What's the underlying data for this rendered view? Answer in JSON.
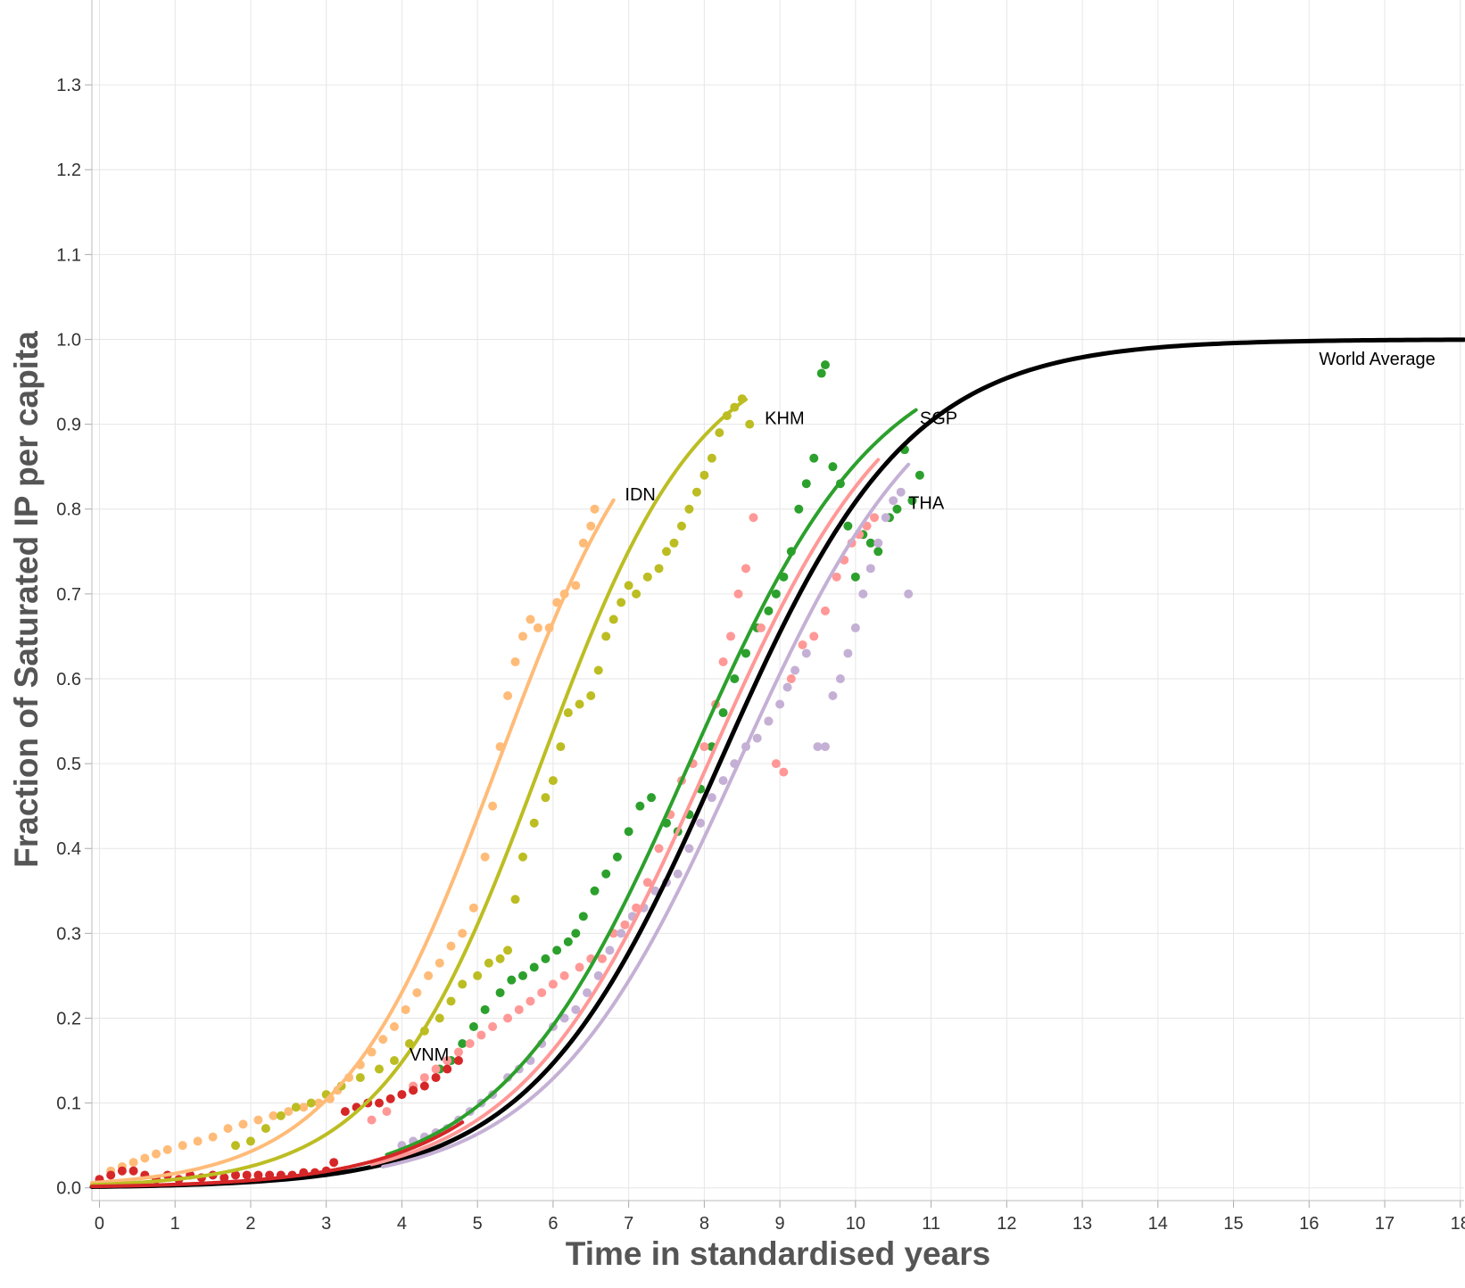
{
  "chart_data": {
    "type": "scatter",
    "title": "",
    "xlabel": "Time in standardised years",
    "ylabel": "Fraction of Saturated IP per capita",
    "xlim": [
      -0.1,
      18.05
    ],
    "ylim": [
      -0.015,
      1.4
    ],
    "x_ticks": [
      "0",
      "1",
      "2",
      "3",
      "4",
      "5",
      "6",
      "7",
      "8",
      "9",
      "10",
      "11",
      "12",
      "13",
      "14",
      "15",
      "16",
      "17",
      "18"
    ],
    "y_ticks": [
      "0.0",
      "0.1",
      "0.2",
      "0.3",
      "0.4",
      "0.5",
      "0.6",
      "0.7",
      "0.8",
      "0.9",
      "1.0",
      "1.1",
      "1.2",
      "1.3"
    ],
    "grid": true,
    "legend": "none",
    "fit_curves": [
      {
        "name": "World Average",
        "color": "#000000",
        "x0": 8.2,
        "k": 0.8,
        "x_range": [
          -0.1,
          18.05
        ],
        "label_at": [
          16.9,
          0.97
        ]
      },
      {
        "name": "IDN",
        "color": "#ffbb78",
        "x0": 5.27,
        "k": 0.95,
        "x_range": [
          -0.1,
          6.8
        ],
        "label_at": [
          6.95,
          0.81
        ]
      },
      {
        "name": "KHM",
        "color": "#bcbd22",
        "x0": 5.84,
        "k": 0.95,
        "x_range": [
          -0.1,
          8.55
        ],
        "label_at": [
          8.8,
          0.9
        ]
      },
      {
        "name": "SGP",
        "color": "#2ca02c",
        "x0": 7.8,
        "k": 0.8,
        "x_range": [
          3.8,
          10.8
        ],
        "label_at": [
          10.85,
          0.9
        ]
      },
      {
        "name": "THA",
        "color": "#ff9896",
        "x0": 8.05,
        "k": 0.8,
        "x_range": [
          3.6,
          10.3
        ],
        "label_at": [
          10.7,
          0.8
        ]
      },
      {
        "name": "",
        "color": "#c5b0d5",
        "x0": 8.45,
        "k": 0.78,
        "x_range": [
          3.75,
          10.7
        ]
      },
      {
        "name": "VNM",
        "color": "#d62728",
        "x0": 7.9,
        "k": 0.8,
        "x_range": [
          -0.1,
          4.8
        ],
        "label_at": [
          4.1,
          0.15
        ]
      }
    ],
    "series": [
      {
        "name": "IDN",
        "color": "#ffbb78",
        "points": [
          [
            0.0,
            0.01
          ],
          [
            0.15,
            0.02
          ],
          [
            0.3,
            0.025
          ],
          [
            0.45,
            0.03
          ],
          [
            0.6,
            0.035
          ],
          [
            0.75,
            0.04
          ],
          [
            0.9,
            0.045
          ],
          [
            1.1,
            0.05
          ],
          [
            1.3,
            0.055
          ],
          [
            1.5,
            0.06
          ],
          [
            1.7,
            0.07
          ],
          [
            1.9,
            0.075
          ],
          [
            2.1,
            0.08
          ],
          [
            2.3,
            0.085
          ],
          [
            2.5,
            0.09
          ],
          [
            2.7,
            0.095
          ],
          [
            2.9,
            0.1
          ],
          [
            3.05,
            0.105
          ],
          [
            3.15,
            0.115
          ],
          [
            3.3,
            0.13
          ],
          [
            3.45,
            0.145
          ],
          [
            3.6,
            0.16
          ],
          [
            3.75,
            0.175
          ],
          [
            3.9,
            0.19
          ],
          [
            4.05,
            0.21
          ],
          [
            4.2,
            0.23
          ],
          [
            4.35,
            0.25
          ],
          [
            4.5,
            0.265
          ],
          [
            4.65,
            0.285
          ],
          [
            4.8,
            0.3
          ],
          [
            4.95,
            0.33
          ],
          [
            5.1,
            0.39
          ],
          [
            5.2,
            0.45
          ],
          [
            5.3,
            0.52
          ],
          [
            5.4,
            0.58
          ],
          [
            5.5,
            0.62
          ],
          [
            5.6,
            0.65
          ],
          [
            5.7,
            0.67
          ],
          [
            5.8,
            0.66
          ],
          [
            5.95,
            0.66
          ],
          [
            6.05,
            0.69
          ],
          [
            6.15,
            0.7
          ],
          [
            6.3,
            0.71
          ],
          [
            6.4,
            0.76
          ],
          [
            6.5,
            0.78
          ],
          [
            6.55,
            0.8
          ]
        ]
      },
      {
        "name": "KHM",
        "color": "#bcbd22",
        "points": [
          [
            1.8,
            0.05
          ],
          [
            2.0,
            0.055
          ],
          [
            2.2,
            0.07
          ],
          [
            2.4,
            0.085
          ],
          [
            2.6,
            0.095
          ],
          [
            2.8,
            0.1
          ],
          [
            3.0,
            0.11
          ],
          [
            3.2,
            0.12
          ],
          [
            3.45,
            0.13
          ],
          [
            3.7,
            0.14
          ],
          [
            3.9,
            0.15
          ],
          [
            4.1,
            0.17
          ],
          [
            4.3,
            0.185
          ],
          [
            4.5,
            0.2
          ],
          [
            4.65,
            0.22
          ],
          [
            4.8,
            0.24
          ],
          [
            5.0,
            0.25
          ],
          [
            5.15,
            0.265
          ],
          [
            5.3,
            0.27
          ],
          [
            5.4,
            0.28
          ],
          [
            5.5,
            0.34
          ],
          [
            5.6,
            0.39
          ],
          [
            5.75,
            0.43
          ],
          [
            5.9,
            0.46
          ],
          [
            6.0,
            0.48
          ],
          [
            6.1,
            0.52
          ],
          [
            6.2,
            0.56
          ],
          [
            6.35,
            0.57
          ],
          [
            6.5,
            0.58
          ],
          [
            6.6,
            0.61
          ],
          [
            6.7,
            0.65
          ],
          [
            6.8,
            0.67
          ],
          [
            6.9,
            0.69
          ],
          [
            7.0,
            0.71
          ],
          [
            7.1,
            0.7
          ],
          [
            7.25,
            0.72
          ],
          [
            7.4,
            0.73
          ],
          [
            7.5,
            0.75
          ],
          [
            7.6,
            0.76
          ],
          [
            7.7,
            0.78
          ],
          [
            7.8,
            0.8
          ],
          [
            7.9,
            0.82
          ],
          [
            8.0,
            0.84
          ],
          [
            8.1,
            0.86
          ],
          [
            8.2,
            0.89
          ],
          [
            8.3,
            0.91
          ],
          [
            8.4,
            0.92
          ],
          [
            8.5,
            0.93
          ],
          [
            8.6,
            0.9
          ]
        ]
      },
      {
        "name": "SGP",
        "color": "#2ca02c",
        "points": [
          [
            4.5,
            0.14
          ],
          [
            4.65,
            0.15
          ],
          [
            4.8,
            0.17
          ],
          [
            4.95,
            0.19
          ],
          [
            5.1,
            0.21
          ],
          [
            5.3,
            0.23
          ],
          [
            5.45,
            0.245
          ],
          [
            5.6,
            0.25
          ],
          [
            5.75,
            0.26
          ],
          [
            5.9,
            0.27
          ],
          [
            6.05,
            0.28
          ],
          [
            6.2,
            0.29
          ],
          [
            6.3,
            0.3
          ],
          [
            6.4,
            0.32
          ],
          [
            6.55,
            0.35
          ],
          [
            6.7,
            0.37
          ],
          [
            6.85,
            0.39
          ],
          [
            7.0,
            0.42
          ],
          [
            7.15,
            0.45
          ],
          [
            7.3,
            0.46
          ],
          [
            7.5,
            0.43
          ],
          [
            7.65,
            0.42
          ],
          [
            7.8,
            0.44
          ],
          [
            7.95,
            0.47
          ],
          [
            8.1,
            0.52
          ],
          [
            8.25,
            0.56
          ],
          [
            8.4,
            0.6
          ],
          [
            8.55,
            0.63
          ],
          [
            8.7,
            0.66
          ],
          [
            8.85,
            0.68
          ],
          [
            8.95,
            0.7
          ],
          [
            9.05,
            0.72
          ],
          [
            9.15,
            0.75
          ],
          [
            9.25,
            0.8
          ],
          [
            9.35,
            0.83
          ],
          [
            9.45,
            0.86
          ],
          [
            9.55,
            0.96
          ],
          [
            9.6,
            0.97
          ],
          [
            9.7,
            0.85
          ],
          [
            9.8,
            0.83
          ],
          [
            9.9,
            0.78
          ],
          [
            10.0,
            0.72
          ],
          [
            10.1,
            0.77
          ],
          [
            10.2,
            0.76
          ],
          [
            10.3,
            0.75
          ],
          [
            10.45,
            0.79
          ],
          [
            10.55,
            0.8
          ],
          [
            10.65,
            0.87
          ],
          [
            10.75,
            0.81
          ],
          [
            10.85,
            0.84
          ]
        ]
      },
      {
        "name": "THA",
        "color": "#ff9896",
        "points": [
          [
            3.6,
            0.08
          ],
          [
            3.8,
            0.09
          ],
          [
            4.0,
            0.11
          ],
          [
            4.15,
            0.12
          ],
          [
            4.3,
            0.13
          ],
          [
            4.45,
            0.14
          ],
          [
            4.6,
            0.15
          ],
          [
            4.75,
            0.16
          ],
          [
            4.9,
            0.17
          ],
          [
            5.05,
            0.18
          ],
          [
            5.2,
            0.19
          ],
          [
            5.4,
            0.2
          ],
          [
            5.55,
            0.21
          ],
          [
            5.7,
            0.22
          ],
          [
            5.85,
            0.23
          ],
          [
            6.0,
            0.24
          ],
          [
            6.15,
            0.25
          ],
          [
            6.35,
            0.26
          ],
          [
            6.5,
            0.27
          ],
          [
            6.65,
            0.27
          ],
          [
            6.8,
            0.3
          ],
          [
            6.95,
            0.31
          ],
          [
            7.1,
            0.33
          ],
          [
            7.25,
            0.36
          ],
          [
            7.4,
            0.4
          ],
          [
            7.55,
            0.44
          ],
          [
            7.7,
            0.48
          ],
          [
            7.85,
            0.5
          ],
          [
            8.0,
            0.52
          ],
          [
            8.15,
            0.57
          ],
          [
            8.25,
            0.62
          ],
          [
            8.35,
            0.65
          ],
          [
            8.45,
            0.7
          ],
          [
            8.55,
            0.73
          ],
          [
            8.65,
            0.79
          ],
          [
            8.75,
            0.66
          ],
          [
            8.85,
            0.55
          ],
          [
            8.95,
            0.5
          ],
          [
            9.05,
            0.49
          ],
          [
            9.15,
            0.6
          ],
          [
            9.3,
            0.64
          ],
          [
            9.45,
            0.65
          ],
          [
            9.6,
            0.68
          ],
          [
            9.75,
            0.72
          ],
          [
            9.85,
            0.74
          ],
          [
            9.95,
            0.76
          ],
          [
            10.05,
            0.77
          ],
          [
            10.15,
            0.78
          ],
          [
            10.25,
            0.79
          ]
        ]
      },
      {
        "name": "",
        "color": "#c5b0d5",
        "points": [
          [
            4.0,
            0.05
          ],
          [
            4.15,
            0.055
          ],
          [
            4.3,
            0.06
          ],
          [
            4.45,
            0.065
          ],
          [
            4.6,
            0.07
          ],
          [
            4.75,
            0.08
          ],
          [
            4.9,
            0.09
          ],
          [
            5.05,
            0.1
          ],
          [
            5.2,
            0.11
          ],
          [
            5.4,
            0.13
          ],
          [
            5.55,
            0.14
          ],
          [
            5.7,
            0.15
          ],
          [
            5.85,
            0.17
          ],
          [
            6.0,
            0.19
          ],
          [
            6.15,
            0.2
          ],
          [
            6.3,
            0.21
          ],
          [
            6.45,
            0.23
          ],
          [
            6.6,
            0.25
          ],
          [
            6.75,
            0.28
          ],
          [
            6.9,
            0.3
          ],
          [
            7.05,
            0.32
          ],
          [
            7.2,
            0.33
          ],
          [
            7.35,
            0.35
          ],
          [
            7.5,
            0.36
          ],
          [
            7.65,
            0.37
          ],
          [
            7.8,
            0.4
          ],
          [
            7.95,
            0.43
          ],
          [
            8.1,
            0.46
          ],
          [
            8.25,
            0.48
          ],
          [
            8.4,
            0.5
          ],
          [
            8.55,
            0.52
          ],
          [
            8.7,
            0.53
          ],
          [
            8.85,
            0.55
          ],
          [
            9.0,
            0.57
          ],
          [
            9.1,
            0.59
          ],
          [
            9.2,
            0.61
          ],
          [
            9.35,
            0.63
          ],
          [
            9.5,
            0.52
          ],
          [
            9.6,
            0.52
          ],
          [
            9.7,
            0.58
          ],
          [
            9.8,
            0.6
          ],
          [
            9.9,
            0.63
          ],
          [
            10.0,
            0.66
          ],
          [
            10.1,
            0.7
          ],
          [
            10.2,
            0.73
          ],
          [
            10.3,
            0.76
          ],
          [
            10.4,
            0.79
          ],
          [
            10.5,
            0.81
          ],
          [
            10.6,
            0.82
          ],
          [
            10.7,
            0.7
          ]
        ]
      },
      {
        "name": "VNM",
        "color": "#d62728",
        "points": [
          [
            0.0,
            0.01
          ],
          [
            0.15,
            0.015
          ],
          [
            0.3,
            0.02
          ],
          [
            0.45,
            0.02
          ],
          [
            0.6,
            0.015
          ],
          [
            0.75,
            0.01
          ],
          [
            0.9,
            0.015
          ],
          [
            1.05,
            0.01
          ],
          [
            1.2,
            0.015
          ],
          [
            1.35,
            0.012
          ],
          [
            1.5,
            0.015
          ],
          [
            1.65,
            0.012
          ],
          [
            1.8,
            0.015
          ],
          [
            1.95,
            0.015
          ],
          [
            2.1,
            0.015
          ],
          [
            2.25,
            0.015
          ],
          [
            2.4,
            0.015
          ],
          [
            2.55,
            0.015
          ],
          [
            2.7,
            0.018
          ],
          [
            2.85,
            0.018
          ],
          [
            3.0,
            0.02
          ],
          [
            3.1,
            0.03
          ],
          [
            3.25,
            0.09
          ],
          [
            3.4,
            0.095
          ],
          [
            3.55,
            0.1
          ],
          [
            3.7,
            0.1
          ],
          [
            3.85,
            0.105
          ],
          [
            4.0,
            0.11
          ],
          [
            4.15,
            0.115
          ],
          [
            4.3,
            0.12
          ],
          [
            4.45,
            0.13
          ],
          [
            4.6,
            0.14
          ],
          [
            4.75,
            0.15
          ]
        ]
      }
    ]
  }
}
